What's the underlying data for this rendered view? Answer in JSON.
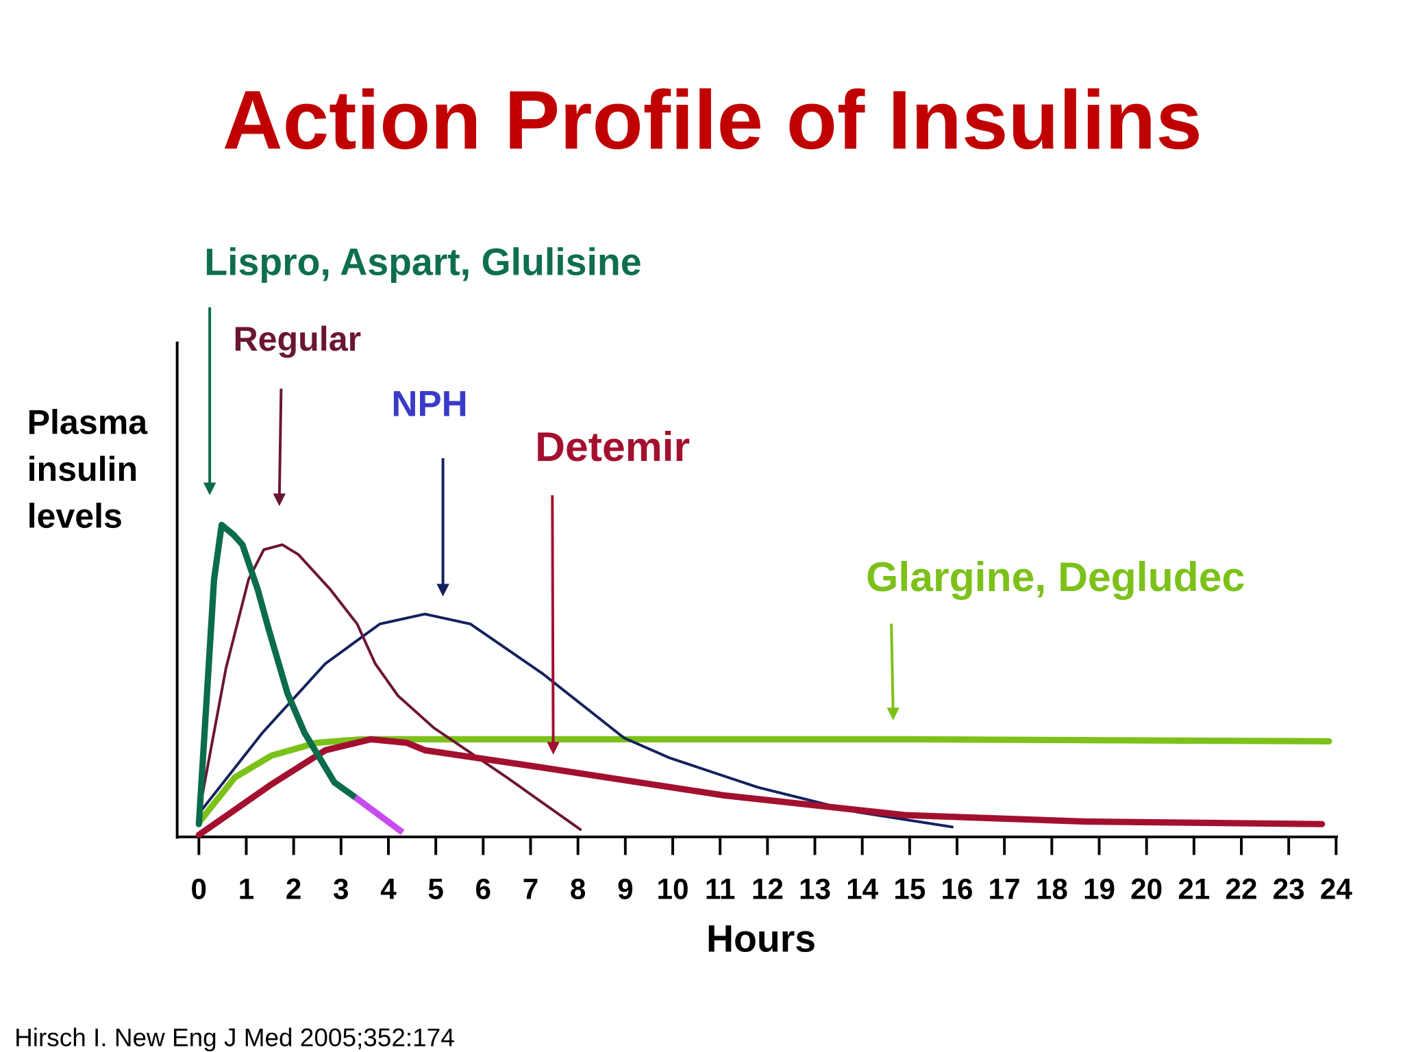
{
  "chart_data": {
    "type": "line",
    "title": "Action Profile of Insulins",
    "y_label": [
      "Plasma",
      "insulin",
      "levels"
    ],
    "x_label": "Hours",
    "source": "Hirsch I. New Eng J Med 2005;352:174",
    "xlim": [
      0,
      24
    ],
    "xticks": [
      0,
      1,
      2,
      3,
      4,
      5,
      6,
      7,
      8,
      9,
      10,
      11,
      12,
      13,
      14,
      15,
      16,
      17,
      18,
      19,
      20,
      21,
      22,
      23,
      24
    ],
    "ylim": [
      0,
      100
    ],
    "series": [
      {
        "name": "Lispro, Aspart, Glulisine",
        "color": "#0b6b4d",
        "label_color": "#0e6e50",
        "width": 7,
        "x": [
          0,
          0.32,
          0.48,
          0.73,
          0.92,
          1.24,
          1.47,
          1.87,
          2.23,
          2.86,
          3.3
        ],
        "values": [
          2.6,
          52,
          63,
          61,
          59,
          50,
          42,
          29,
          21,
          11,
          8
        ],
        "tail": {
          "color": "#c84bf0",
          "x": [
            3.3,
            4.3
          ],
          "values": [
            8,
            0.9
          ]
        }
      },
      {
        "name": "Regular",
        "color": "#6b1535",
        "label_color": "#6b1535",
        "width": 3,
        "x": [
          0,
          0.57,
          1.05,
          1.37,
          1.76,
          2.1,
          2.77,
          3.34,
          3.72,
          4.2,
          4.96,
          6.5,
          8.05
        ],
        "values": [
          4.7,
          34,
          52,
          58,
          59,
          57,
          50,
          43,
          35,
          28.5,
          22,
          12,
          1.5
        ]
      },
      {
        "name": "NPH",
        "color": "#14215e",
        "label_color": "#3a3ac8",
        "width": 3,
        "x": [
          0,
          1.34,
          2.67,
          3.82,
          4.77,
          5.73,
          7.25,
          8.97,
          9.92,
          11.8,
          13.9,
          15.9
        ],
        "values": [
          4.7,
          21,
          35,
          43,
          45,
          43,
          33,
          20,
          16,
          10,
          5,
          2
        ]
      },
      {
        "name": "Detemir",
        "color": "#a3102f",
        "label_color": "#a3102f",
        "width": 7,
        "x": [
          0,
          1.53,
          2.67,
          3.63,
          4.39,
          4.77,
          7.25,
          11.07,
          14.9,
          18.7,
          23.7
        ],
        "values": [
          0.4,
          10.6,
          17.5,
          19.7,
          19,
          17.5,
          14,
          8.4,
          4.4,
          3.1,
          2.6
        ]
      },
      {
        "name": "Glargine, Degludec",
        "color": "#7cc11a",
        "label_color": "#7cc11a",
        "width": 7,
        "x": [
          0,
          0.76,
          1.53,
          2.48,
          3.44,
          5.34,
          14.9,
          23.85
        ],
        "values": [
          2.9,
          12,
          16.4,
          19,
          19.7,
          19.7,
          19.7,
          19.3
        ]
      }
    ]
  }
}
